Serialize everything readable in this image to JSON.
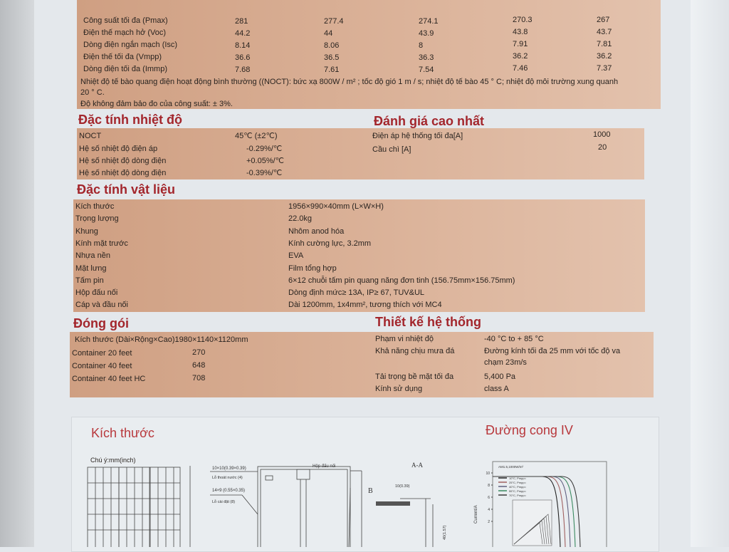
{
  "electrical": {
    "rows": [
      {
        "label": "Công suất tối đa (Pmax)",
        "values": [
          "281",
          "277.4",
          "274.1",
          "270.3",
          "267"
        ]
      },
      {
        "label": "Điện thế mạch hở (Voc)",
        "values": [
          "44.2",
          "44",
          "43.9",
          "43.8",
          "43.7"
        ]
      },
      {
        "label": "Dòng điện ngắn mạch (Isc)",
        "values": [
          "8.14",
          "8.06",
          "8",
          "7.91",
          "7.81"
        ]
      },
      {
        "label": "Điện thế tối đa (Vmpp)",
        "values": [
          "36.6",
          "36.5",
          "36.3",
          "36.2",
          "36.2"
        ]
      },
      {
        "label": "Dòng điện tối đa (Immp)",
        "values": [
          "7.68",
          "7.61",
          "7.54",
          "7.46",
          "7.37"
        ]
      }
    ],
    "note1": "Nhiệt độ tế bào quang điện hoạt động bình thường ((NOCT): bức xạ 800W / m² ; tốc độ gió 1 m / s; nhiệt độ tế bào 45 ° C; nhiệt độ môi trường xung quanh",
    "note1b": "20 ° C.",
    "note2": "Độ không đảm bảo đo của công suất: ± 3%."
  },
  "thermal": {
    "title": "Đặc tính nhiệt độ",
    "rows": [
      {
        "label": "NOCT",
        "value": "45℃ (±2℃)"
      },
      {
        "label": "Hệ số nhiệt độ điện áp",
        "value": "-0.29%/℃"
      },
      {
        "label": "Hệ số nhiệt độ dòng điện",
        "value": "+0.05%/℃"
      },
      {
        "label": "Hệ số nhiệt độ dòng điện",
        "value": "-0.39%/℃"
      }
    ]
  },
  "ratings": {
    "title": "Đánh giá cao nhất",
    "rows": [
      {
        "label": "Điện áp hệ thống tối đa[A]",
        "value": "1000"
      },
      {
        "label": "Cầu chì [A]",
        "value": "20"
      }
    ]
  },
  "material": {
    "title": "Đặc tính vật liệu",
    "rows": [
      {
        "label": "Kích thước",
        "value": "1956×990×40mm (L×W×H)"
      },
      {
        "label": "Trọng lượng",
        "value": "22.0kg"
      },
      {
        "label": "Khung",
        "value": "Nhôm anod hóa"
      },
      {
        "label": "Kính mặt trước",
        "value": "Kính cường lực, 3.2mm"
      },
      {
        "label": "Nhựa nền",
        "value": "EVA"
      },
      {
        "label": "Mặt lưng",
        "value": "Film tổng hợp"
      },
      {
        "label": "Tấm pin",
        "value": "6×12 chuỗi tấm pin quang năng đơn tinh  (156.75mm×156.75mm)"
      },
      {
        "label": "Hộp đấu nối",
        "value": "Dòng định mức≥ 13A, IP≥ 67, TUV&UL"
      },
      {
        "label": "Cáp và đầu nối",
        "value": "Dài 1200mm, 1x4mm², tương thích với MC4"
      }
    ]
  },
  "packing": {
    "title": "Đóng gói",
    "size": "Kích thước (Dài×Rộng×Cao)1980×1140×1120mm",
    "rows": [
      {
        "label": "Container 20 feet",
        "value": "270"
      },
      {
        "label": "Container 40 feet",
        "value": "648"
      },
      {
        "label": "Container 40 feet HC",
        "value": "708"
      }
    ]
  },
  "system": {
    "title": "Thiết kế hệ thống",
    "rows": [
      {
        "label": "Phạm vi nhiệt độ",
        "value": "-40 °C to + 85 °C"
      },
      {
        "label": "Khả năng chịu mưa đá",
        "value": "Đường kính tối đa 25 mm với tốc độ va",
        "value2": "chạm 23m/s"
      },
      {
        "label": "Tải trọng bề mặt tối đa",
        "value": "5,400 Pa"
      },
      {
        "label": "Kính sử dụng",
        "value": "class A"
      }
    ]
  },
  "dimensions": {
    "title": "Kích thước",
    "unit_note": "Chú ý:mm(inch)",
    "junction_box": "Hộp đấu nối",
    "drain_hole_size": "10×10(0.39×0.39)",
    "drain_hole": "Lỗ thoát nước (4)",
    "mount_hole_size": "14×9 (0.55×0.35)",
    "mount_hole": "Lỗ cài đặt (8)",
    "section": "A-A",
    "detail": "B",
    "frame_w": "10(0.39)",
    "frame_h": "40(1.57)"
  },
  "iv": {
    "title": "Đường cong IV",
    "condition": "AM1.5,1000W/m²",
    "ylabel": "Current/A",
    "yticks": [
      "10",
      "8",
      "6",
      "4",
      "2"
    ],
    "legend": [
      "10°C, Pmpp=",
      "25°C, Pmpp=",
      "40°C, Pmpp=",
      "55°C, Pmpp=",
      "70°C, Pmpp="
    ],
    "colors": [
      "#222",
      "#a06060",
      "#606080",
      "#3a8a60",
      "#3a3a3a"
    ]
  }
}
